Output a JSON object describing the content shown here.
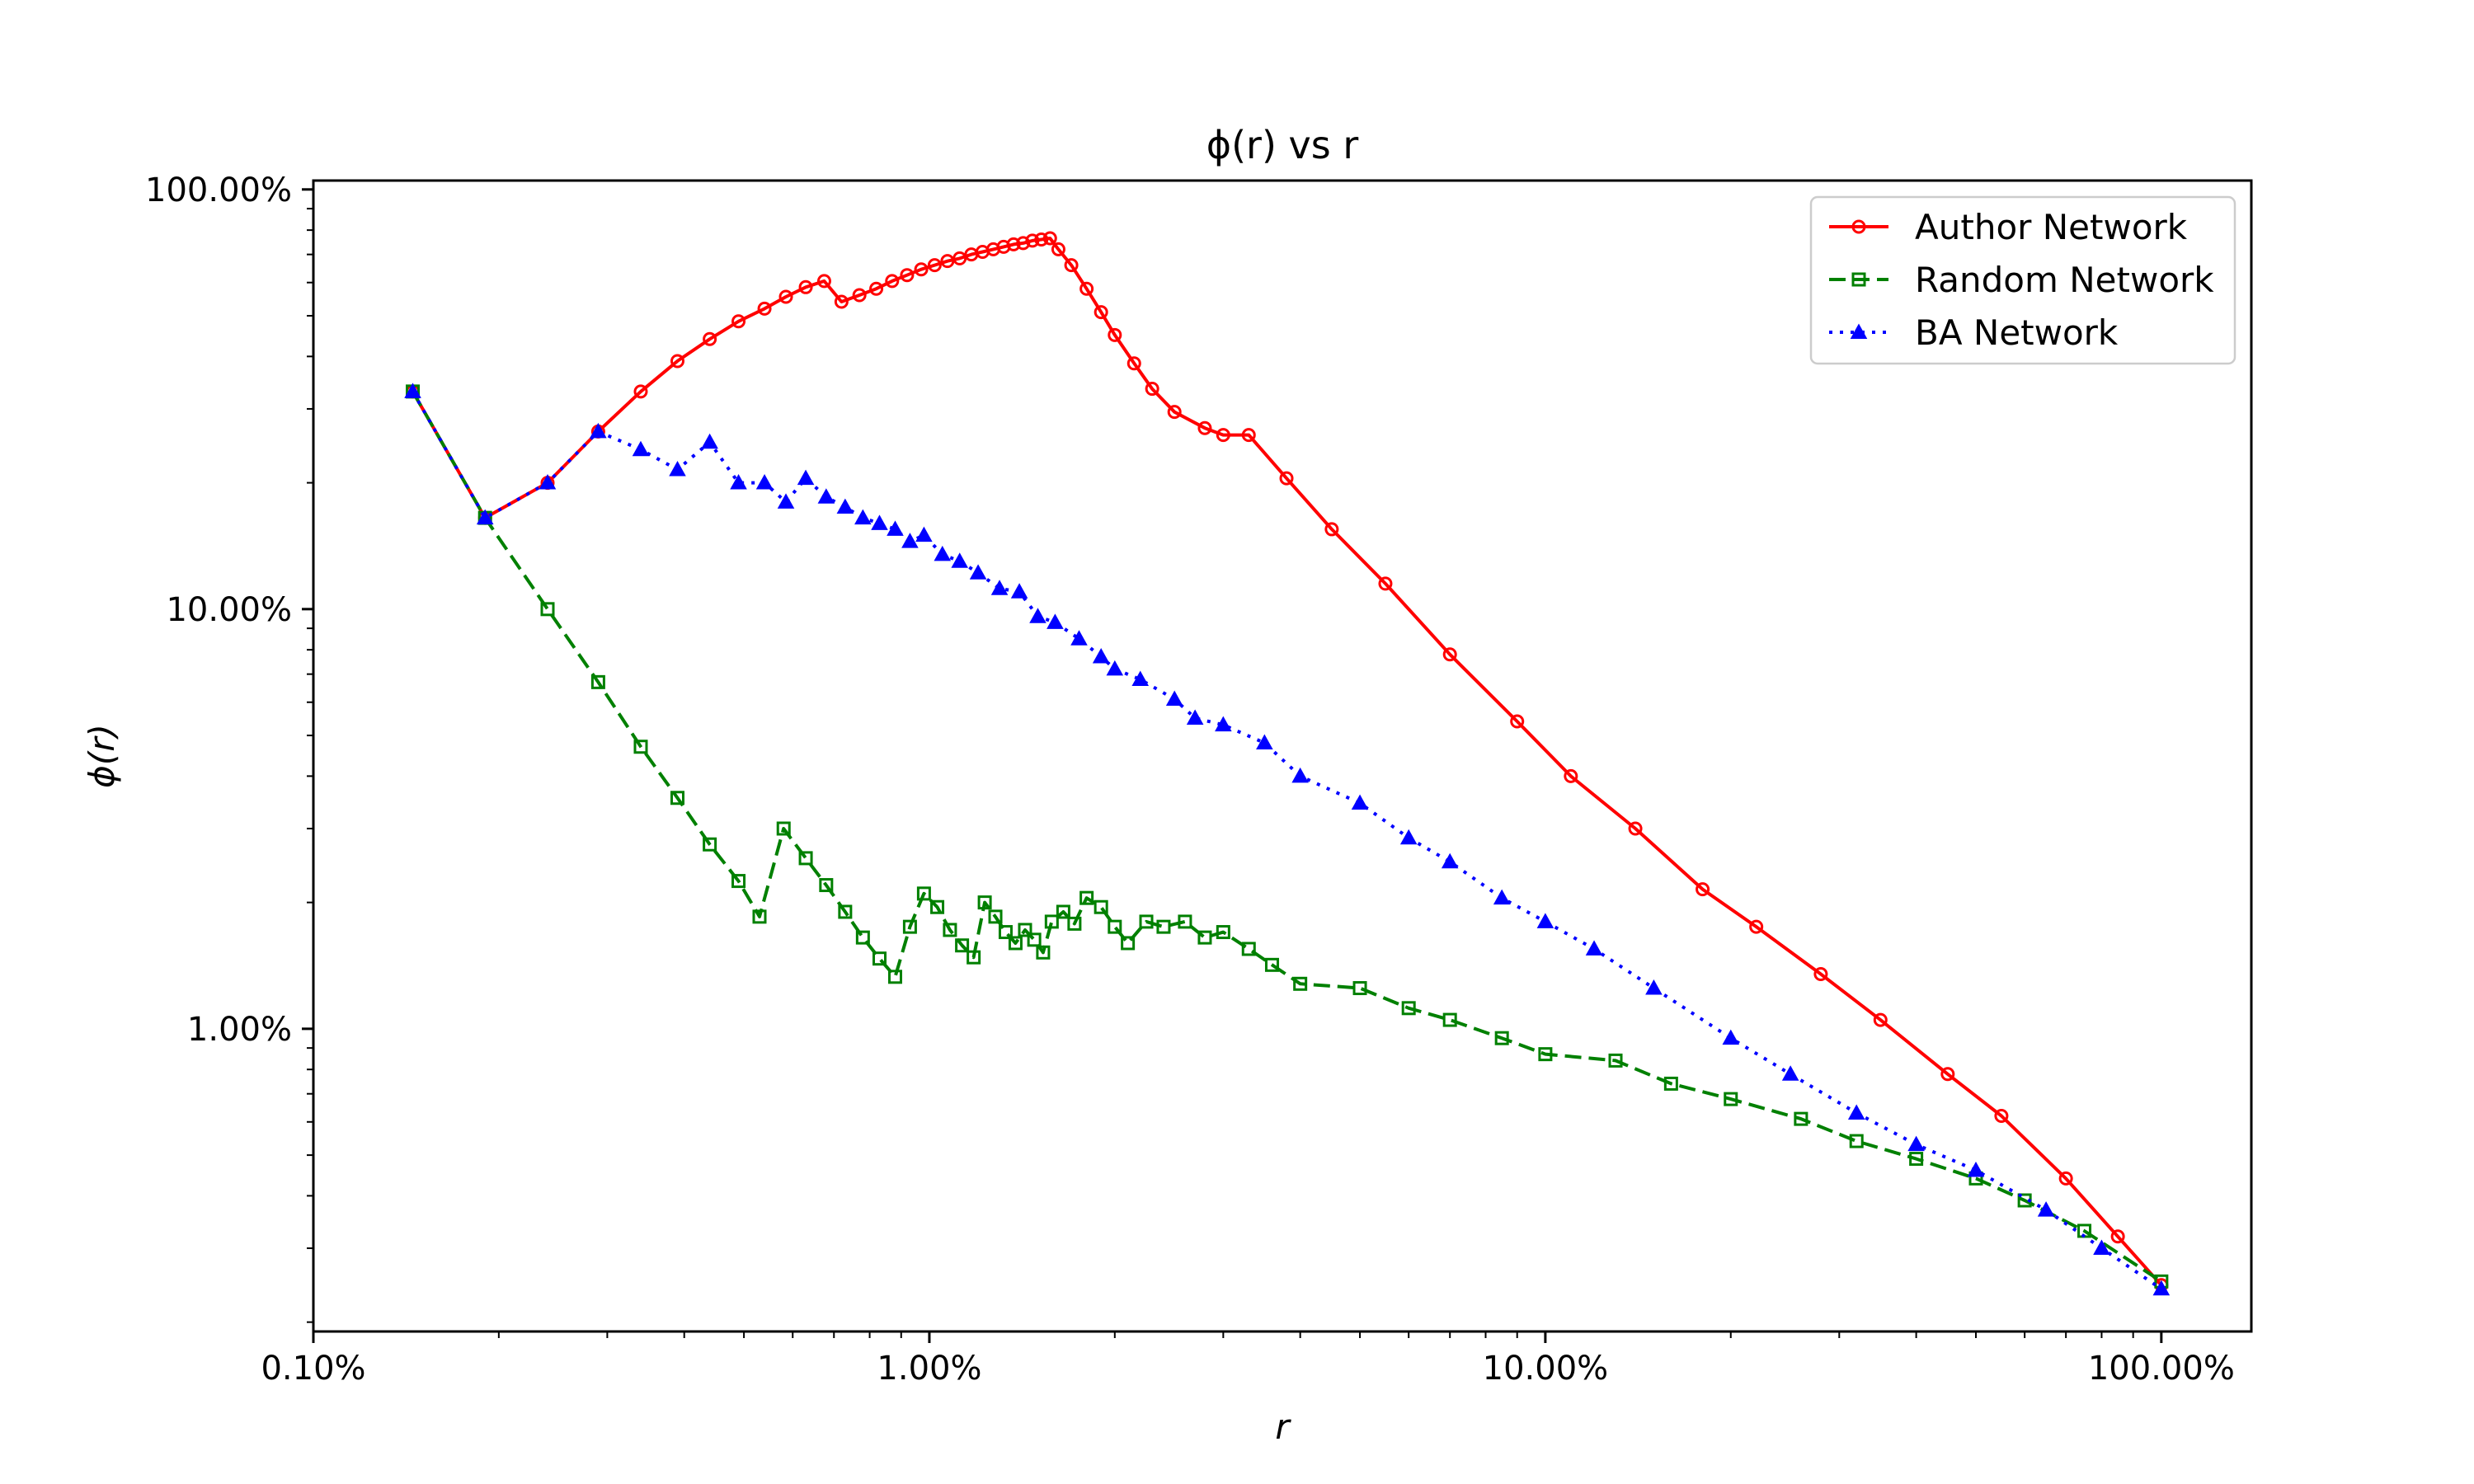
{
  "chart_data": {
    "type": "line",
    "title": "ϕ(r) vs r",
    "xlabel": "r",
    "ylabel": "ϕ(r)",
    "xscale": "log",
    "yscale": "log",
    "xlim": [
      0.1,
      140
    ],
    "ylim": [
      0.19,
      105
    ],
    "x_unit": "%",
    "y_unit": "%",
    "grid": false,
    "legend_placement": "top-right",
    "x_ticks": [
      {
        "value": 0.1,
        "label": "0.10%"
      },
      {
        "value": 1,
        "label": "1.00%"
      },
      {
        "value": 10,
        "label": "10.00%"
      },
      {
        "value": 100,
        "label": "100.00%"
      }
    ],
    "y_ticks": [
      {
        "value": 1,
        "label": "1.00%"
      },
      {
        "value": 10,
        "label": "10.00%"
      },
      {
        "value": 100,
        "label": "100.00%"
      }
    ],
    "series": [
      {
        "name": "Author Network",
        "color": "#ff0000",
        "line_style": "solid",
        "marker": "circle",
        "points": [
          [
            0.145,
            33.0
          ],
          [
            0.19,
            16.5
          ],
          [
            0.24,
            20.0
          ],
          [
            0.29,
            26.5
          ],
          [
            0.34,
            33.0
          ],
          [
            0.39,
            39.0
          ],
          [
            0.44,
            44.0
          ],
          [
            0.49,
            48.5
          ],
          [
            0.54,
            52.0
          ],
          [
            0.585,
            55.5
          ],
          [
            0.63,
            58.5
          ],
          [
            0.675,
            60.5
          ],
          [
            0.72,
            54.0
          ],
          [
            0.77,
            56.0
          ],
          [
            0.82,
            58.0
          ],
          [
            0.87,
            60.5
          ],
          [
            0.92,
            62.5
          ],
          [
            0.97,
            64.5
          ],
          [
            1.02,
            66.0
          ],
          [
            1.07,
            67.5
          ],
          [
            1.12,
            68.5
          ],
          [
            1.17,
            70.0
          ],
          [
            1.22,
            71.0
          ],
          [
            1.27,
            72.0
          ],
          [
            1.32,
            73.0
          ],
          [
            1.37,
            74.0
          ],
          [
            1.42,
            74.5
          ],
          [
            1.47,
            75.5
          ],
          [
            1.52,
            76.0
          ],
          [
            1.57,
            76.5
          ],
          [
            1.62,
            72.0
          ],
          [
            1.7,
            66.0
          ],
          [
            1.8,
            58.0
          ],
          [
            1.9,
            51.0
          ],
          [
            2.0,
            45.0
          ],
          [
            2.15,
            38.5
          ],
          [
            2.3,
            33.5
          ],
          [
            2.5,
            29.5
          ],
          [
            2.8,
            27.0
          ],
          [
            3.0,
            26.0
          ],
          [
            3.3,
            26.0
          ],
          [
            3.8,
            20.5
          ],
          [
            4.5,
            15.5
          ],
          [
            5.5,
            11.5
          ],
          [
            7.0,
            7.8
          ],
          [
            9.0,
            5.4
          ],
          [
            11.0,
            4.0
          ],
          [
            14.0,
            3.0
          ],
          [
            18.0,
            2.15
          ],
          [
            22.0,
            1.75
          ],
          [
            28.0,
            1.35
          ],
          [
            35.0,
            1.05
          ],
          [
            45.0,
            0.78
          ],
          [
            55.0,
            0.62
          ],
          [
            70.0,
            0.44
          ],
          [
            85.0,
            0.32
          ],
          [
            100.0,
            0.245
          ]
        ]
      },
      {
        "name": "Random Network",
        "color": "#008000",
        "line_style": "dashed",
        "marker": "square",
        "points": [
          [
            0.145,
            33.0
          ],
          [
            0.19,
            16.5
          ],
          [
            0.24,
            10.0
          ],
          [
            0.29,
            6.7
          ],
          [
            0.34,
            4.7
          ],
          [
            0.39,
            3.55
          ],
          [
            0.44,
            2.75
          ],
          [
            0.49,
            2.25
          ],
          [
            0.53,
            1.85
          ],
          [
            0.58,
            3.0
          ],
          [
            0.63,
            2.55
          ],
          [
            0.68,
            2.2
          ],
          [
            0.73,
            1.9
          ],
          [
            0.78,
            1.65
          ],
          [
            0.83,
            1.47
          ],
          [
            0.88,
            1.33
          ],
          [
            0.93,
            1.75
          ],
          [
            0.98,
            2.1
          ],
          [
            1.03,
            1.95
          ],
          [
            1.08,
            1.72
          ],
          [
            1.13,
            1.58
          ],
          [
            1.18,
            1.48
          ],
          [
            1.23,
            2.0
          ],
          [
            1.28,
            1.85
          ],
          [
            1.33,
            1.7
          ],
          [
            1.38,
            1.6
          ],
          [
            1.43,
            1.72
          ],
          [
            1.48,
            1.63
          ],
          [
            1.53,
            1.52
          ],
          [
            1.58,
            1.8
          ],
          [
            1.65,
            1.9
          ],
          [
            1.72,
            1.78
          ],
          [
            1.8,
            2.05
          ],
          [
            1.9,
            1.95
          ],
          [
            2.0,
            1.75
          ],
          [
            2.1,
            1.6
          ],
          [
            2.25,
            1.8
          ],
          [
            2.4,
            1.75
          ],
          [
            2.6,
            1.8
          ],
          [
            2.8,
            1.65
          ],
          [
            3.0,
            1.7
          ],
          [
            3.3,
            1.55
          ],
          [
            3.6,
            1.42
          ],
          [
            4.0,
            1.28
          ],
          [
            5.0,
            1.25
          ],
          [
            6.0,
            1.12
          ],
          [
            7.0,
            1.05
          ],
          [
            8.5,
            0.95
          ],
          [
            10.0,
            0.87
          ],
          [
            13.0,
            0.84
          ],
          [
            16.0,
            0.74
          ],
          [
            20.0,
            0.68
          ],
          [
            26.0,
            0.61
          ],
          [
            32.0,
            0.54
          ],
          [
            40.0,
            0.49
          ],
          [
            50.0,
            0.44
          ],
          [
            60.0,
            0.39
          ],
          [
            75.0,
            0.33
          ],
          [
            100.0,
            0.25
          ]
        ]
      },
      {
        "name": "BA Network",
        "color": "#0000ff",
        "line_style": "dotted",
        "marker": "triangle",
        "points": [
          [
            0.145,
            33.0
          ],
          [
            0.19,
            16.5
          ],
          [
            0.24,
            20.0
          ],
          [
            0.29,
            26.5
          ],
          [
            0.34,
            24.0
          ],
          [
            0.39,
            21.5
          ],
          [
            0.44,
            25.0
          ],
          [
            0.49,
            20.0
          ],
          [
            0.54,
            20.0
          ],
          [
            0.585,
            18.0
          ],
          [
            0.63,
            20.5
          ],
          [
            0.68,
            18.5
          ],
          [
            0.73,
            17.5
          ],
          [
            0.78,
            16.5
          ],
          [
            0.83,
            16.0
          ],
          [
            0.88,
            15.5
          ],
          [
            0.93,
            14.5
          ],
          [
            0.98,
            15.0
          ],
          [
            1.05,
            13.5
          ],
          [
            1.12,
            13.0
          ],
          [
            1.2,
            12.2
          ],
          [
            1.3,
            11.2
          ],
          [
            1.4,
            11.0
          ],
          [
            1.5,
            9.6
          ],
          [
            1.6,
            9.3
          ],
          [
            1.75,
            8.5
          ],
          [
            1.9,
            7.7
          ],
          [
            2.0,
            7.2
          ],
          [
            2.2,
            6.8
          ],
          [
            2.5,
            6.1
          ],
          [
            2.7,
            5.5
          ],
          [
            3.0,
            5.3
          ],
          [
            3.5,
            4.8
          ],
          [
            4.0,
            4.0
          ],
          [
            5.0,
            3.45
          ],
          [
            6.0,
            2.85
          ],
          [
            7.0,
            2.5
          ],
          [
            8.5,
            2.05
          ],
          [
            10.0,
            1.8
          ],
          [
            12.0,
            1.55
          ],
          [
            15.0,
            1.25
          ],
          [
            20.0,
            0.95
          ],
          [
            25.0,
            0.78
          ],
          [
            32.0,
            0.63
          ],
          [
            40.0,
            0.53
          ],
          [
            50.0,
            0.46
          ],
          [
            65.0,
            0.37
          ],
          [
            80.0,
            0.3
          ],
          [
            100.0,
            0.24
          ]
        ]
      }
    ]
  }
}
